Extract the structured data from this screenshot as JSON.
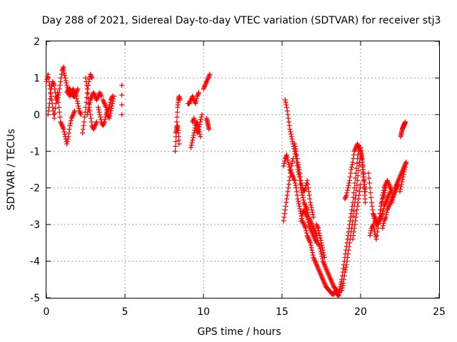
{
  "chart_data": {
    "type": "scatter",
    "title": "Day 288 of 2021, Sidereal Day-to-day VTEC variation (SDTVAR) for receiver stj3",
    "xlabel": "GPS time / hours",
    "ylabel": "SDTVAR / TECUs",
    "xlim": [
      0,
      25
    ],
    "ylim": [
      -5,
      2
    ],
    "xticks": [
      0,
      5,
      10,
      15,
      20,
      25
    ],
    "yticks": [
      -5,
      -4,
      -3,
      -2,
      -1,
      0,
      1,
      2
    ],
    "grid": true,
    "marker": "+",
    "color": "#ff0000",
    "series": [
      {
        "name": "SDTVAR",
        "segments": [
          {
            "x": [
              0.0,
              0.1,
              0.2,
              0.3,
              0.4,
              0.5,
              0.6,
              0.7,
              0.8,
              0.9,
              1.0
            ],
            "y": [
              0.9,
              1.1,
              0.8,
              0.5,
              0.2,
              -0.1,
              0.3,
              0.6,
              0.2,
              -0.2,
              -0.3
            ]
          },
          {
            "x": [
              0.1,
              0.2,
              0.3,
              0.4,
              0.5,
              0.6,
              0.7,
              0.8,
              0.9,
              1.0,
              1.1
            ],
            "y": [
              0.0,
              0.3,
              0.7,
              0.9,
              0.8,
              0.5,
              0.4,
              0.6,
              0.9,
              1.2,
              1.3
            ]
          },
          {
            "x": [
              1.0,
              1.1,
              1.2,
              1.3,
              1.4,
              1.5,
              1.6,
              1.7,
              1.8
            ],
            "y": [
              -0.3,
              -0.4,
              -0.6,
              -0.8,
              -0.6,
              -0.3,
              -0.1,
              0.0,
              0.1
            ]
          },
          {
            "x": [
              1.1,
              1.2,
              1.3,
              1.4,
              1.5,
              1.6,
              1.7,
              1.8,
              1.9,
              2.0,
              2.1,
              2.2
            ],
            "y": [
              1.2,
              1.0,
              0.8,
              0.6,
              0.5,
              0.6,
              0.7,
              0.6,
              0.5,
              0.3,
              0.1,
              0.0
            ]
          },
          {
            "x": [
              1.3,
              1.4,
              1.5,
              1.6,
              1.7,
              1.8,
              1.9,
              2.0
            ],
            "y": [
              0.6,
              0.7,
              0.7,
              0.6,
              0.5,
              0.5,
              0.6,
              0.7
            ]
          },
          {
            "x": [
              2.3,
              2.4,
              2.5,
              2.6,
              2.7,
              2.8,
              2.9
            ],
            "y": [
              -0.5,
              -0.2,
              0.2,
              0.6,
              0.9,
              1.1,
              1.0
            ]
          },
          {
            "x": [
              2.5,
              2.6,
              2.7,
              2.8,
              2.9,
              3.0,
              3.1,
              3.2
            ],
            "y": [
              1.0,
              0.7,
              0.3,
              0.0,
              -0.3,
              -0.4,
              -0.3,
              -0.2
            ]
          },
          {
            "x": [
              2.6,
              2.7,
              2.8,
              2.9,
              3.0,
              3.1,
              3.2,
              3.3,
              3.4,
              3.5
            ],
            "y": [
              0.0,
              0.2,
              0.4,
              0.5,
              0.6,
              0.5,
              0.4,
              0.5,
              0.6,
              0.5
            ]
          },
          {
            "x": [
              3.3,
              3.4,
              3.5,
              3.6,
              3.7,
              3.8,
              3.9,
              4.0,
              4.1,
              4.2
            ],
            "y": [
              0.2,
              0.0,
              -0.2,
              -0.3,
              -0.2,
              0.0,
              0.1,
              0.2,
              0.4,
              0.5
            ]
          },
          {
            "x": [
              3.6,
              3.7,
              3.8,
              3.9,
              4.0,
              4.1,
              4.2,
              4.3
            ],
            "y": [
              0.4,
              0.3,
              0.2,
              0.0,
              -0.1,
              0.1,
              0.3,
              0.5
            ]
          },
          {
            "x": [
              4.8,
              4.8
            ],
            "y": [
              0.8,
              0.0
            ]
          },
          {
            "x": [
              8.2,
              8.25,
              8.3,
              8.35,
              8.4,
              8.45,
              8.5
            ],
            "y": [
              -1.0,
              -0.6,
              -0.2,
              0.2,
              0.4,
              0.5,
              0.4
            ]
          },
          {
            "x": [
              8.25,
              8.3,
              8.35,
              8.4,
              8.45
            ],
            "y": [
              -0.5,
              -0.4,
              -0.3,
              -0.5,
              -0.8
            ]
          },
          {
            "x": [
              9.0,
              9.1,
              9.2,
              9.3,
              9.4,
              9.5,
              9.6,
              9.7
            ],
            "y": [
              0.3,
              0.3,
              0.4,
              0.5,
              0.4,
              0.3,
              0.5,
              0.6
            ]
          },
          {
            "x": [
              9.2,
              9.3,
              9.4,
              9.5,
              9.6,
              9.7,
              9.8
            ],
            "y": [
              -0.9,
              -0.7,
              -0.5,
              -0.3,
              -0.2,
              -0.4,
              -0.6
            ]
          },
          {
            "x": [
              9.3,
              9.4,
              9.5,
              9.6,
              9.7,
              9.8,
              9.9
            ],
            "y": [
              -0.2,
              -0.1,
              -0.3,
              -0.5,
              -0.4,
              -0.2,
              0.0
            ]
          },
          {
            "x": [
              10.0,
              10.1,
              10.2,
              10.3,
              10.4
            ],
            "y": [
              0.7,
              0.8,
              0.9,
              1.0,
              1.1
            ]
          },
          {
            "x": [
              10.2,
              10.25,
              10.3,
              10.35
            ],
            "y": [
              -0.1,
              -0.2,
              -0.3,
              -0.4
            ]
          },
          {
            "x": [
              15.1,
              15.2,
              15.3,
              15.4,
              15.5,
              15.6,
              15.7,
              15.8,
              15.9,
              16.0,
              16.1,
              16.2,
              16.3,
              16.4,
              16.5,
              16.6,
              16.7,
              16.8,
              16.9,
              17.0,
              17.1,
              17.2,
              17.3,
              17.4,
              17.5,
              17.6,
              17.7,
              17.8,
              17.9,
              18.0,
              18.1,
              18.2,
              18.3,
              18.4,
              18.5,
              18.6,
              18.7
            ],
            "y": [
              -1.4,
              -1.2,
              -1.1,
              -1.3,
              -1.5,
              -1.6,
              -1.7,
              -1.8,
              -2.0,
              -2.3,
              -2.5,
              -2.7,
              -2.9,
              -3.0,
              -3.1,
              -3.3,
              -3.4,
              -3.5,
              -3.7,
              -3.9,
              -4.0,
              -4.1,
              -4.2,
              -4.3,
              -4.4,
              -4.5,
              -4.6,
              -4.7,
              -4.75,
              -4.8,
              -4.85,
              -4.9,
              -4.9,
              -4.8,
              -4.9,
              -4.95,
              -4.8
            ]
          },
          {
            "x": [
              15.2,
              15.3,
              15.4,
              15.5,
              15.6,
              15.7,
              15.8,
              15.9,
              16.0,
              16.1,
              16.2,
              16.3,
              16.4,
              16.5,
              16.6,
              16.7,
              16.8,
              16.9,
              17.0,
              17.1,
              17.2,
              17.3,
              17.4,
              17.5,
              17.6,
              17.7,
              17.8,
              17.9,
              18.0,
              18.1,
              18.2,
              18.3,
              18.4,
              18.5
            ],
            "y": [
              0.4,
              0.2,
              -0.1,
              -0.4,
              -0.6,
              -0.8,
              -1.0,
              -1.2,
              -1.5,
              -1.7,
              -2.0,
              -2.2,
              -2.4,
              -2.5,
              -2.6,
              -2.8,
              -2.9,
              -3.0,
              -3.1,
              -3.2,
              -3.3,
              -3.5,
              -3.6,
              -3.8,
              -4.0,
              -4.1,
              -4.2,
              -4.3,
              -4.4,
              -4.5,
              -4.6,
              -4.7,
              -4.75,
              -4.8
            ]
          },
          {
            "x": [
              15.1,
              15.2,
              15.3,
              15.4,
              15.5,
              15.6,
              15.7
            ],
            "y": [
              -2.9,
              -2.6,
              -2.3,
              -2.0,
              -1.7,
              -1.4,
              -1.2
            ]
          },
          {
            "x": [
              15.8,
              15.9,
              16.0,
              16.1,
              16.2,
              16.3,
              16.4,
              16.5,
              16.6,
              16.7,
              16.8,
              16.9,
              17.0
            ],
            "y": [
              -0.8,
              -1.0,
              -1.3,
              -1.5,
              -1.8,
              -2.0,
              -2.1,
              -2.0,
              -1.8,
              -2.1,
              -2.4,
              -2.6,
              -2.8
            ]
          },
          {
            "x": [
              16.2,
              16.3,
              16.4,
              16.5,
              16.6,
              16.7,
              16.8,
              16.9,
              17.0,
              17.1,
              17.2
            ],
            "y": [
              -2.9,
              -2.7,
              -2.6,
              -2.7,
              -2.8,
              -3.0,
              -3.1,
              -3.2,
              -3.3,
              -3.4,
              -3.5
            ]
          },
          {
            "x": [
              17.2,
              17.3,
              17.4,
              17.5,
              17.6,
              17.7
            ],
            "y": [
              -3.0,
              -3.1,
              -3.3,
              -3.5,
              -3.7,
              -3.9
            ]
          },
          {
            "x": [
              18.6,
              18.7,
              18.8,
              18.9,
              19.0,
              19.1,
              19.2,
              19.3,
              19.4,
              19.5,
              19.6,
              19.7,
              19.8,
              19.9,
              20.0
            ],
            "y": [
              -4.9,
              -4.7,
              -4.5,
              -4.2,
              -3.9,
              -3.6,
              -3.3,
              -3.0,
              -2.7,
              -2.4,
              -2.0,
              -1.6,
              -1.2,
              -0.9,
              -0.9
            ]
          },
          {
            "x": [
              18.8,
              18.9,
              19.0,
              19.1,
              19.2,
              19.3,
              19.4,
              19.5,
              19.6,
              19.7,
              19.8,
              19.9,
              20.0
            ],
            "y": [
              -4.8,
              -4.6,
              -4.3,
              -4.1,
              -3.8,
              -3.5,
              -3.2,
              -2.9,
              -2.5,
              -2.2,
              -1.8,
              -1.4,
              -1.1
            ]
          },
          {
            "x": [
              19.0,
              19.1,
              19.2,
              19.3,
              19.4,
              19.5,
              19.6,
              19.7,
              19.8,
              19.9,
              20.0,
              20.1
            ],
            "y": [
              -2.3,
              -2.2,
              -2.0,
              -1.8,
              -1.5,
              -1.3,
              -1.0,
              -0.9,
              -0.8,
              -0.9,
              -1.0,
              -1.2
            ]
          },
          {
            "x": [
              19.5,
              19.6,
              19.7,
              19.8,
              19.9,
              20.0
            ],
            "y": [
              -3.4,
              -3.1,
              -2.8,
              -2.5,
              -2.2,
              -1.9
            ]
          },
          {
            "x": [
              20.0,
              20.05,
              20.1,
              20.15,
              20.2,
              20.25,
              20.3
            ],
            "y": [
              -0.9,
              -1.1,
              -1.3,
              -1.5,
              -1.7,
              -1.9,
              -2.1
            ]
          },
          {
            "x": [
              20.1,
              20.15,
              20.2,
              20.25,
              20.3
            ],
            "y": [
              -1.2,
              -1.5,
              -1.8,
              -2.1,
              -2.4
            ]
          },
          {
            "x": [
              20.5,
              20.6,
              20.7,
              20.8,
              20.9,
              21.0,
              21.1,
              21.2,
              21.3,
              21.4,
              21.5,
              21.6,
              21.7,
              21.8,
              21.9
            ],
            "y": [
              -1.6,
              -2.0,
              -2.4,
              -2.7,
              -2.9,
              -3.0,
              -3.0,
              -2.9,
              -2.8,
              -2.7,
              -2.5,
              -2.4,
              -2.3,
              -2.2,
              -2.1
            ]
          },
          {
            "x": [
              20.6,
              20.7,
              20.8,
              20.9,
              21.0,
              21.1,
              21.2,
              21.3,
              21.4,
              21.5,
              21.6
            ],
            "y": [
              -3.3,
              -3.1,
              -3.0,
              -3.2,
              -3.4,
              -3.1,
              -2.8,
              -2.5,
              -2.3,
              -2.2,
              -2.0
            ]
          },
          {
            "x": [
              20.8,
              20.9,
              21.0,
              21.1,
              21.2,
              21.3,
              21.4,
              21.5,
              21.6,
              21.7,
              21.8,
              21.9,
              22.0
            ],
            "y": [
              -2.7,
              -2.8,
              -2.9,
              -3.0,
              -2.8,
              -2.5,
              -2.2,
              -2.0,
              -1.9,
              -1.8,
              -1.9,
              -2.0,
              -2.1
            ]
          },
          {
            "x": [
              21.4,
              21.5,
              21.6,
              21.7,
              21.8,
              21.9,
              22.0,
              22.1,
              22.2,
              22.3,
              22.4
            ],
            "y": [
              -3.1,
              -2.9,
              -2.8,
              -2.6,
              -2.5,
              -2.4,
              -2.3,
              -2.2,
              -2.1,
              -2.0,
              -1.9
            ]
          },
          {
            "x": [
              22.0,
              22.1,
              22.2,
              22.3,
              22.4,
              22.5,
              22.6,
              22.7,
              22.8,
              22.9
            ],
            "y": [
              -2.4,
              -2.2,
              -2.0,
              -1.9,
              -1.8,
              -1.7,
              -1.6,
              -1.5,
              -1.4,
              -1.3
            ]
          },
          {
            "x": [
              22.5,
              22.6,
              22.7,
              22.8,
              22.9
            ],
            "y": [
              -2.1,
              -1.9,
              -1.7,
              -1.5,
              -1.3
            ]
          },
          {
            "x": [
              22.55,
              22.6,
              22.65,
              22.7,
              22.75,
              22.8,
              22.85
            ],
            "y": [
              -0.6,
              -0.5,
              -0.4,
              -0.35,
              -0.3,
              -0.25,
              -0.2
            ]
          }
        ]
      }
    ]
  }
}
